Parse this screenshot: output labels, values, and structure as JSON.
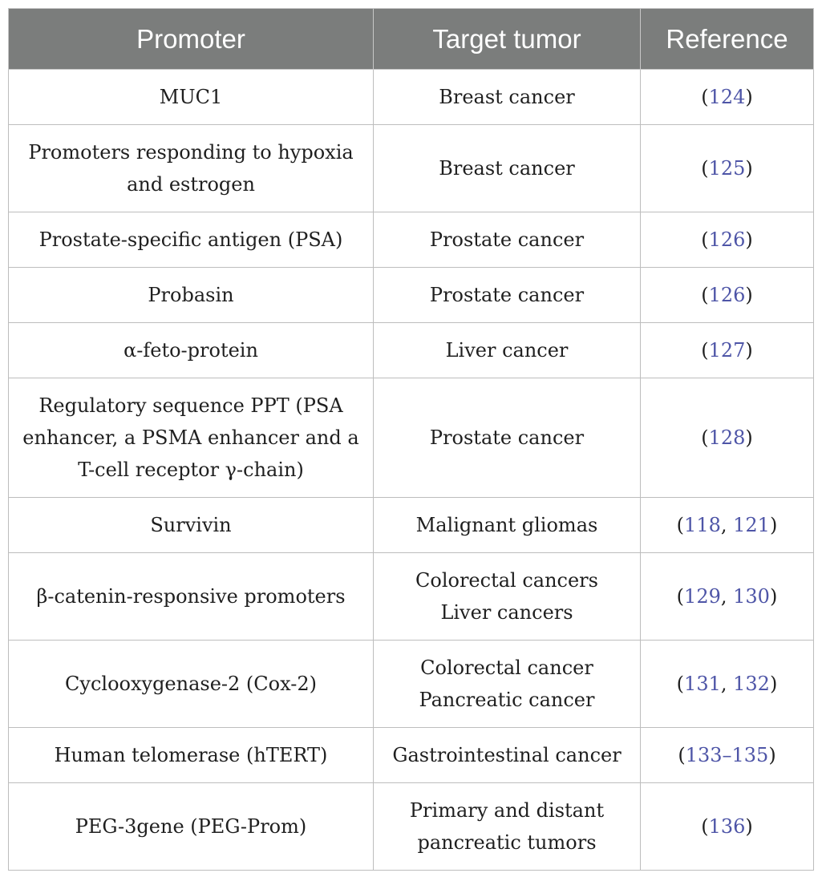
{
  "headers": {
    "promoter": "Promoter",
    "target": "Target tumor",
    "reference": "Reference"
  },
  "rows": [
    {
      "promoter": [
        "MUC1"
      ],
      "target": [
        "Breast cancer"
      ],
      "refs": [
        "124"
      ]
    },
    {
      "promoter": [
        "Promoters responding to hypoxia",
        "and estrogen"
      ],
      "target": [
        "Breast cancer"
      ],
      "refs": [
        "125"
      ]
    },
    {
      "promoter": [
        "Prostate-specific antigen (PSA)"
      ],
      "target": [
        "Prostate cancer"
      ],
      "refs": [
        "126"
      ]
    },
    {
      "promoter": [
        "Probasin"
      ],
      "target": [
        "Prostate cancer"
      ],
      "refs": [
        "126"
      ]
    },
    {
      "promoter": [
        "α-feto-protein"
      ],
      "target": [
        "Liver cancer"
      ],
      "refs": [
        "127"
      ]
    },
    {
      "promoter": [
        "Regulatory sequence PPT (PSA",
        "enhancer, a PSMA enhancer and a",
        "T-cell receptor γ-chain)"
      ],
      "target": [
        "Prostate cancer"
      ],
      "refs": [
        "128"
      ]
    },
    {
      "promoter": [
        "Survivin"
      ],
      "target": [
        "Malignant gliomas"
      ],
      "refs": [
        "118",
        "121"
      ]
    },
    {
      "promoter": [
        "β-catenin-responsive promoters"
      ],
      "target": [
        "Colorectal cancers",
        "Liver cancers"
      ],
      "refs": [
        "129",
        "130"
      ]
    },
    {
      "promoter": [
        "Cyclooxygenase-2 (Cox-2)"
      ],
      "target": [
        "Colorectal cancer",
        "Pancreatic cancer"
      ],
      "refs": [
        "131",
        "132"
      ]
    },
    {
      "promoter": [
        "Human telomerase (hTERT)"
      ],
      "target": [
        "Gastrointestinal cancer"
      ],
      "refs": [
        "133–135"
      ]
    },
    {
      "promoter": [
        "PEG-3gene (PEG-Prom)"
      ],
      "target": [
        "Primary and distant",
        "pancreatic tumors"
      ],
      "refs": [
        "136"
      ]
    }
  ]
}
